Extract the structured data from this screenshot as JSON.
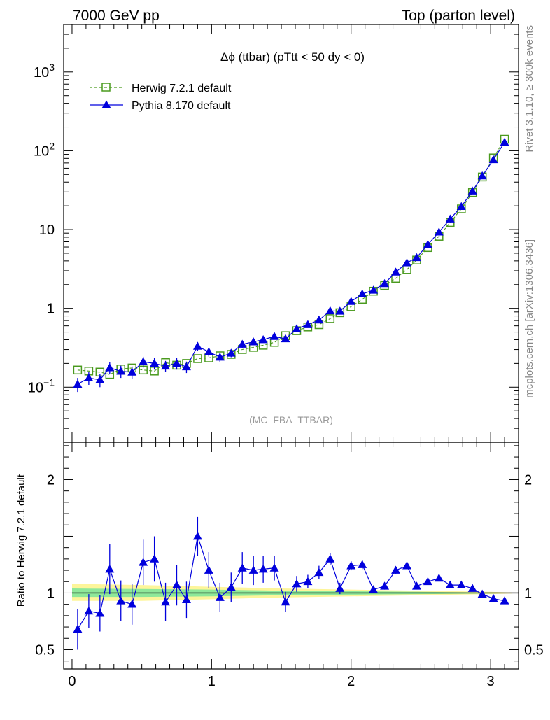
{
  "header": {
    "left": "7000 GeV pp",
    "right": "Top (parton level)"
  },
  "side_labels": {
    "top": "Rivet 3.1.10, ≥ 300k events",
    "bottom": "mcplots.cern.ch [arXiv:1306.3436]"
  },
  "chart_data": [
    {
      "type": "line",
      "title": "Δϕ (ttbar) (pTtt < 50 dy < 0)",
      "watermark": "(MC_FBA_TTBAR)",
      "yscale": "log",
      "xlim": [
        -0.06,
        3.2
      ],
      "ylim": [
        0.02,
        4000
      ],
      "grid": false,
      "legend": "top-left",
      "yticks": [
        {
          "value": 0.1,
          "label": "10",
          "sup": "−1"
        },
        {
          "value": 1,
          "label": "1",
          "sup": ""
        },
        {
          "value": 10,
          "label": "10",
          "sup": ""
        },
        {
          "value": 100,
          "label": "10",
          "sup": "2"
        },
        {
          "value": 1000,
          "label": "10",
          "sup": "3"
        }
      ],
      "x": [
        0.04,
        0.12,
        0.2,
        0.27,
        0.35,
        0.43,
        0.51,
        0.59,
        0.67,
        0.75,
        0.82,
        0.9,
        0.98,
        1.06,
        1.14,
        1.22,
        1.3,
        1.37,
        1.45,
        1.53,
        1.61,
        1.69,
        1.77,
        1.85,
        1.92,
        2.0,
        2.08,
        2.16,
        2.24,
        2.32,
        2.4,
        2.47,
        2.55,
        2.63,
        2.71,
        2.79,
        2.87,
        2.94,
        3.02,
        3.1
      ],
      "series": [
        {
          "name": "Herwig 7.2.1 default",
          "color": "#4a9a1e",
          "marker": "open-square",
          "dash": true,
          "values": [
            0.165,
            0.16,
            0.155,
            0.145,
            0.17,
            0.175,
            0.165,
            0.16,
            0.205,
            0.19,
            0.2,
            0.23,
            0.235,
            0.25,
            0.26,
            0.3,
            0.32,
            0.34,
            0.37,
            0.45,
            0.52,
            0.58,
            0.62,
            0.74,
            0.88,
            1.05,
            1.3,
            1.65,
            1.95,
            2.4,
            3.1,
            4.1,
            5.9,
            8.2,
            12.3,
            18.3,
            29.5,
            46.5,
            81,
            140
          ]
        },
        {
          "name": "Pythia 8.170 default",
          "color": "#0000dd",
          "marker": "filled-triangle",
          "dash": false,
          "values": [
            0.109,
            0.131,
            0.124,
            0.176,
            0.159,
            0.155,
            0.21,
            0.2,
            0.185,
            0.2,
            0.181,
            0.33,
            0.28,
            0.24,
            0.27,
            0.35,
            0.375,
            0.4,
            0.44,
            0.41,
            0.55,
            0.62,
            0.71,
            0.93,
            0.92,
            1.22,
            1.52,
            1.7,
            2.06,
            2.88,
            3.78,
            4.4,
            6.45,
            9.3,
            13.6,
            19.6,
            30.8,
            48,
            77,
            128
          ],
          "err_lo": [
            0.022,
            0.024,
            0.024,
            0.03,
            0.028,
            0.028,
            0.033,
            0.033,
            0.03,
            0.033,
            0.03,
            0.04,
            0.035,
            0.03,
            0.03,
            0.035,
            0.035,
            0.035,
            0.035,
            0.035,
            0.03,
            0.03,
            0.03,
            0.03,
            0.03,
            0.03,
            0.03,
            0.03,
            0.04,
            0.05,
            0.05,
            0.05,
            0.07,
            0.08,
            0.1,
            0.2,
            0.3,
            0.4,
            0.6,
            1.0
          ],
          "err_hi": [
            0.022,
            0.024,
            0.024,
            0.03,
            0.028,
            0.028,
            0.033,
            0.033,
            0.03,
            0.033,
            0.03,
            0.04,
            0.035,
            0.03,
            0.03,
            0.035,
            0.035,
            0.035,
            0.035,
            0.035,
            0.03,
            0.03,
            0.03,
            0.03,
            0.03,
            0.03,
            0.03,
            0.03,
            0.04,
            0.05,
            0.05,
            0.05,
            0.07,
            0.08,
            0.1,
            0.2,
            0.3,
            0.4,
            0.6,
            1.0
          ]
        }
      ]
    },
    {
      "type": "line",
      "ylabel": "Ratio to Herwig 7.2.1 default",
      "xlim": [
        -0.06,
        3.2
      ],
      "ylim": [
        0.33,
        2.33
      ],
      "grid": false,
      "yticks": [
        {
          "value": 0.5,
          "label": "0.5"
        },
        {
          "value": 1,
          "label": "1"
        },
        {
          "value": 2,
          "label": "2"
        }
      ],
      "xticks": [
        {
          "value": 0,
          "label": "0"
        },
        {
          "value": 1,
          "label": "1"
        },
        {
          "value": 2,
          "label": "2"
        },
        {
          "value": 3,
          "label": "3"
        }
      ],
      "reference_line": 1.0,
      "uncertainty_bands": {
        "x": [
          0.0,
          0.5,
          1.0,
          1.5,
          2.0,
          2.5,
          3.0,
          3.15
        ],
        "outer_lo": [
          0.93,
          0.93,
          0.945,
          0.96,
          0.97,
          0.98,
          0.99,
          0.995
        ],
        "outer_hi": [
          1.08,
          1.07,
          1.055,
          1.04,
          1.03,
          1.02,
          1.01,
          1.005
        ],
        "inner_lo": [
          0.965,
          0.965,
          0.97,
          0.98,
          0.985,
          0.99,
          0.995,
          0.998
        ],
        "inner_hi": [
          1.04,
          1.035,
          1.03,
          1.02,
          1.015,
          1.01,
          1.005,
          1.002
        ],
        "outer_color": "#fdf59a",
        "inner_color": "#8ee89a"
      },
      "series": [
        {
          "name": "Pythia 8.170 default",
          "color": "#0000dd",
          "marker": "filled-triangle",
          "values": [
            0.68,
            0.84,
            0.82,
            1.21,
            0.93,
            0.9,
            1.27,
            1.3,
            0.92,
            1.07,
            0.94,
            1.5,
            1.2,
            0.96,
            1.05,
            1.22,
            1.2,
            1.21,
            1.22,
            0.92,
            1.08,
            1.1,
            1.18,
            1.3,
            1.04,
            1.24,
            1.25,
            1.03,
            1.06,
            1.2,
            1.24,
            1.06,
            1.1,
            1.13,
            1.07,
            1.07,
            1.04,
            0.99,
            0.95,
            0.93
          ],
          "err": [
            0.18,
            0.15,
            0.16,
            0.22,
            0.18,
            0.18,
            0.2,
            0.2,
            0.17,
            0.18,
            0.16,
            0.17,
            0.16,
            0.13,
            0.13,
            0.14,
            0.13,
            0.12,
            0.11,
            0.09,
            0.07,
            0.06,
            0.06,
            0.05,
            0.05,
            0.04,
            0.04,
            0.03,
            0.03,
            0.03,
            0.03,
            0.02,
            0.02,
            0.02,
            0.015,
            0.01,
            0.01,
            0.01,
            0.01,
            0.01
          ]
        }
      ]
    }
  ]
}
